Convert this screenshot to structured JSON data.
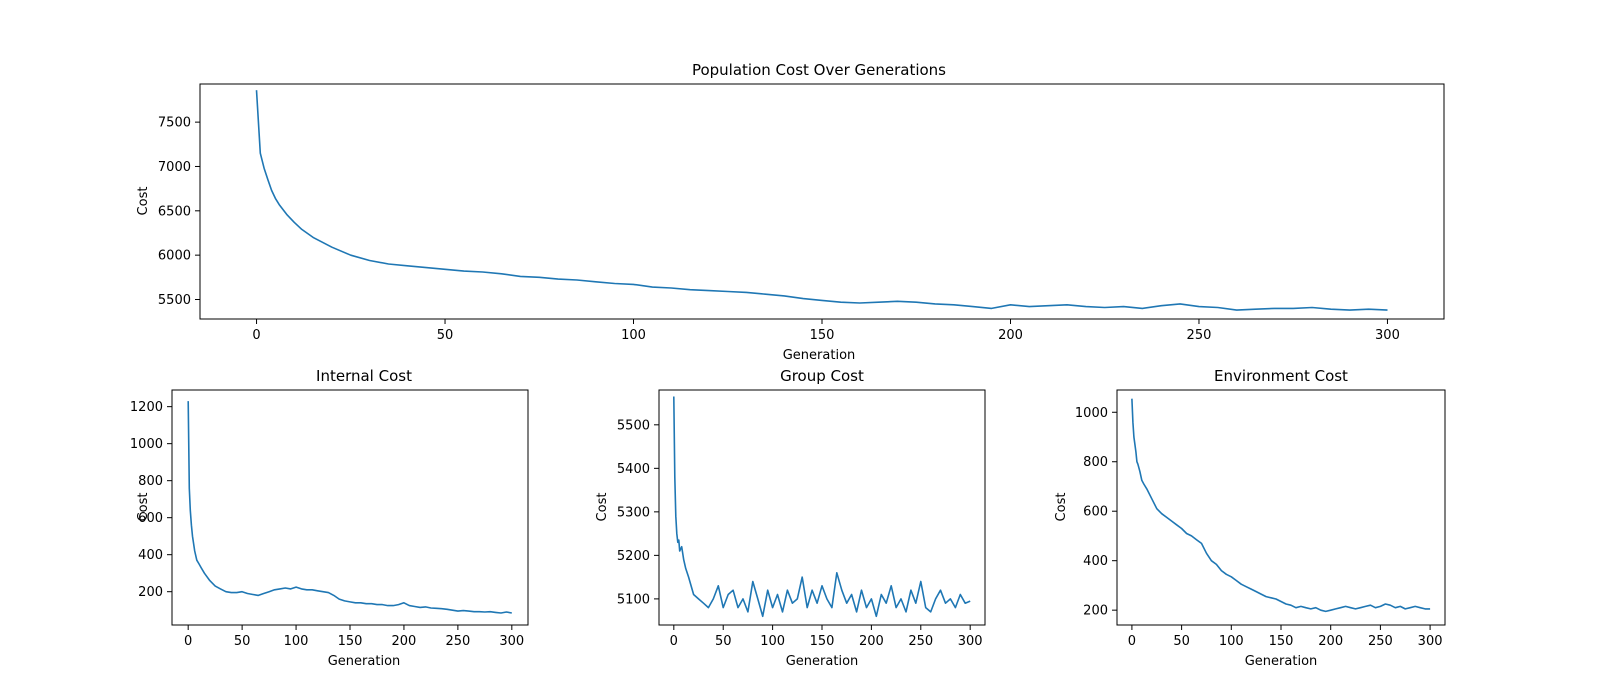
{
  "chart_data": [
    {
      "type": "line",
      "title": "Population Cost Over Generations",
      "xlabel": "Generation",
      "ylabel": "Cost",
      "xlim": [
        -15,
        315
      ],
      "ylim": [
        5280,
        7930
      ],
      "xticks": [
        0,
        50,
        100,
        150,
        200,
        250,
        300
      ],
      "yticks": [
        5500,
        6000,
        6500,
        7000,
        7500
      ],
      "grid": false,
      "series": [
        {
          "color": "#1f77b4",
          "x": [
            0,
            1,
            2,
            3,
            4,
            5,
            6,
            8,
            10,
            12,
            15,
            20,
            25,
            30,
            35,
            40,
            45,
            50,
            55,
            60,
            65,
            70,
            75,
            80,
            85,
            90,
            95,
            100,
            105,
            110,
            115,
            120,
            125,
            130,
            135,
            140,
            145,
            150,
            155,
            160,
            165,
            170,
            175,
            180,
            185,
            190,
            195,
            200,
            205,
            210,
            215,
            220,
            225,
            230,
            235,
            240,
            245,
            250,
            255,
            260,
            265,
            270,
            275,
            280,
            285,
            290,
            295,
            300
          ],
          "y": [
            7860,
            7150,
            6980,
            6850,
            6730,
            6640,
            6570,
            6460,
            6370,
            6290,
            6200,
            6090,
            6000,
            5940,
            5900,
            5880,
            5860,
            5840,
            5820,
            5810,
            5790,
            5760,
            5750,
            5730,
            5720,
            5700,
            5680,
            5670,
            5640,
            5630,
            5610,
            5600,
            5590,
            5580,
            5560,
            5540,
            5510,
            5490,
            5470,
            5460,
            5470,
            5480,
            5470,
            5450,
            5440,
            5420,
            5400,
            5440,
            5420,
            5430,
            5440,
            5420,
            5410,
            5420,
            5400,
            5430,
            5450,
            5420,
            5410,
            5380,
            5390,
            5400,
            5400,
            5410,
            5390,
            5380,
            5390,
            5380
          ]
        }
      ]
    },
    {
      "type": "line",
      "title": "Internal Cost",
      "xlabel": "Generation",
      "ylabel": "Cost",
      "xlim": [
        -15,
        315
      ],
      "ylim": [
        20,
        1290
      ],
      "xticks": [
        0,
        50,
        100,
        150,
        200,
        250,
        300
      ],
      "yticks": [
        200,
        400,
        600,
        800,
        1000,
        1200
      ],
      "grid": false,
      "series": [
        {
          "color": "#1f77b4",
          "x": [
            0,
            1,
            2,
            3,
            4,
            5,
            6,
            8,
            10,
            12,
            15,
            20,
            25,
            30,
            35,
            40,
            45,
            50,
            55,
            60,
            65,
            70,
            75,
            80,
            85,
            90,
            95,
            100,
            105,
            110,
            115,
            120,
            125,
            130,
            135,
            140,
            145,
            150,
            155,
            160,
            165,
            170,
            175,
            180,
            185,
            190,
            195,
            200,
            205,
            210,
            215,
            220,
            225,
            230,
            235,
            240,
            245,
            250,
            255,
            260,
            265,
            270,
            275,
            280,
            285,
            290,
            295,
            300
          ],
          "y": [
            1230,
            760,
            640,
            560,
            500,
            460,
            420,
            370,
            350,
            330,
            300,
            260,
            230,
            215,
            200,
            195,
            195,
            200,
            190,
            185,
            180,
            190,
            200,
            210,
            215,
            220,
            215,
            225,
            215,
            210,
            210,
            205,
            200,
            195,
            180,
            160,
            150,
            145,
            140,
            140,
            135,
            135,
            130,
            130,
            125,
            125,
            130,
            140,
            125,
            120,
            115,
            118,
            112,
            110,
            108,
            105,
            100,
            95,
            98,
            95,
            92,
            92,
            90,
            92,
            88,
            85,
            90,
            85
          ]
        }
      ]
    },
    {
      "type": "line",
      "title": "Group Cost",
      "xlabel": "Generation",
      "ylabel": "Cost",
      "xlim": [
        -15,
        315
      ],
      "ylim": [
        5040,
        5580
      ],
      "xticks": [
        0,
        50,
        100,
        150,
        200,
        250,
        300
      ],
      "yticks": [
        5100,
        5200,
        5300,
        5400,
        5500
      ],
      "grid": false,
      "series": [
        {
          "color": "#1f77b4",
          "x": [
            0,
            1,
            2,
            3,
            4,
            5,
            6,
            8,
            10,
            12,
            15,
            20,
            25,
            30,
            35,
            40,
            45,
            50,
            55,
            60,
            65,
            70,
            75,
            80,
            85,
            90,
            95,
            100,
            105,
            110,
            115,
            120,
            125,
            130,
            135,
            140,
            145,
            150,
            155,
            160,
            165,
            170,
            175,
            180,
            185,
            190,
            195,
            200,
            205,
            210,
            215,
            220,
            225,
            230,
            235,
            240,
            245,
            250,
            255,
            260,
            265,
            270,
            275,
            280,
            285,
            290,
            295,
            300
          ],
          "y": [
            5565,
            5380,
            5290,
            5250,
            5230,
            5235,
            5210,
            5220,
            5190,
            5170,
            5150,
            5110,
            5100,
            5090,
            5080,
            5100,
            5130,
            5080,
            5110,
            5120,
            5080,
            5100,
            5070,
            5140,
            5100,
            5060,
            5120,
            5080,
            5110,
            5070,
            5120,
            5090,
            5100,
            5150,
            5080,
            5120,
            5090,
            5130,
            5100,
            5080,
            5160,
            5120,
            5090,
            5110,
            5070,
            5120,
            5080,
            5100,
            5060,
            5110,
            5090,
            5130,
            5080,
            5100,
            5070,
            5120,
            5090,
            5140,
            5080,
            5070,
            5100,
            5120,
            5090,
            5100,
            5080,
            5110,
            5090,
            5095
          ]
        }
      ]
    },
    {
      "type": "line",
      "title": "Environment Cost",
      "xlabel": "Generation",
      "ylabel": "Cost",
      "xlim": [
        -15,
        315
      ],
      "ylim": [
        140,
        1090
      ],
      "xticks": [
        0,
        50,
        100,
        150,
        200,
        250,
        300
      ],
      "yticks": [
        200,
        400,
        600,
        800,
        1000
      ],
      "grid": false,
      "series": [
        {
          "color": "#1f77b4",
          "x": [
            0,
            1,
            2,
            3,
            4,
            5,
            6,
            8,
            10,
            12,
            15,
            20,
            25,
            30,
            35,
            40,
            45,
            50,
            55,
            60,
            65,
            70,
            75,
            80,
            85,
            90,
            95,
            100,
            105,
            110,
            115,
            120,
            125,
            130,
            135,
            140,
            145,
            150,
            155,
            160,
            165,
            170,
            175,
            180,
            185,
            190,
            195,
            200,
            205,
            210,
            215,
            220,
            225,
            230,
            235,
            240,
            245,
            250,
            255,
            260,
            265,
            270,
            275,
            280,
            285,
            290,
            295,
            300
          ],
          "y": [
            1055,
            960,
            900,
            870,
            840,
            800,
            790,
            760,
            725,
            710,
            690,
            650,
            610,
            590,
            575,
            560,
            545,
            530,
            510,
            500,
            485,
            470,
            430,
            400,
            385,
            360,
            345,
            335,
            320,
            305,
            295,
            285,
            275,
            265,
            255,
            250,
            245,
            235,
            225,
            220,
            210,
            215,
            210,
            205,
            210,
            200,
            195,
            200,
            205,
            210,
            215,
            210,
            205,
            210,
            215,
            220,
            210,
            215,
            225,
            220,
            210,
            215,
            205,
            210,
            215,
            210,
            205,
            205
          ]
        }
      ]
    }
  ]
}
